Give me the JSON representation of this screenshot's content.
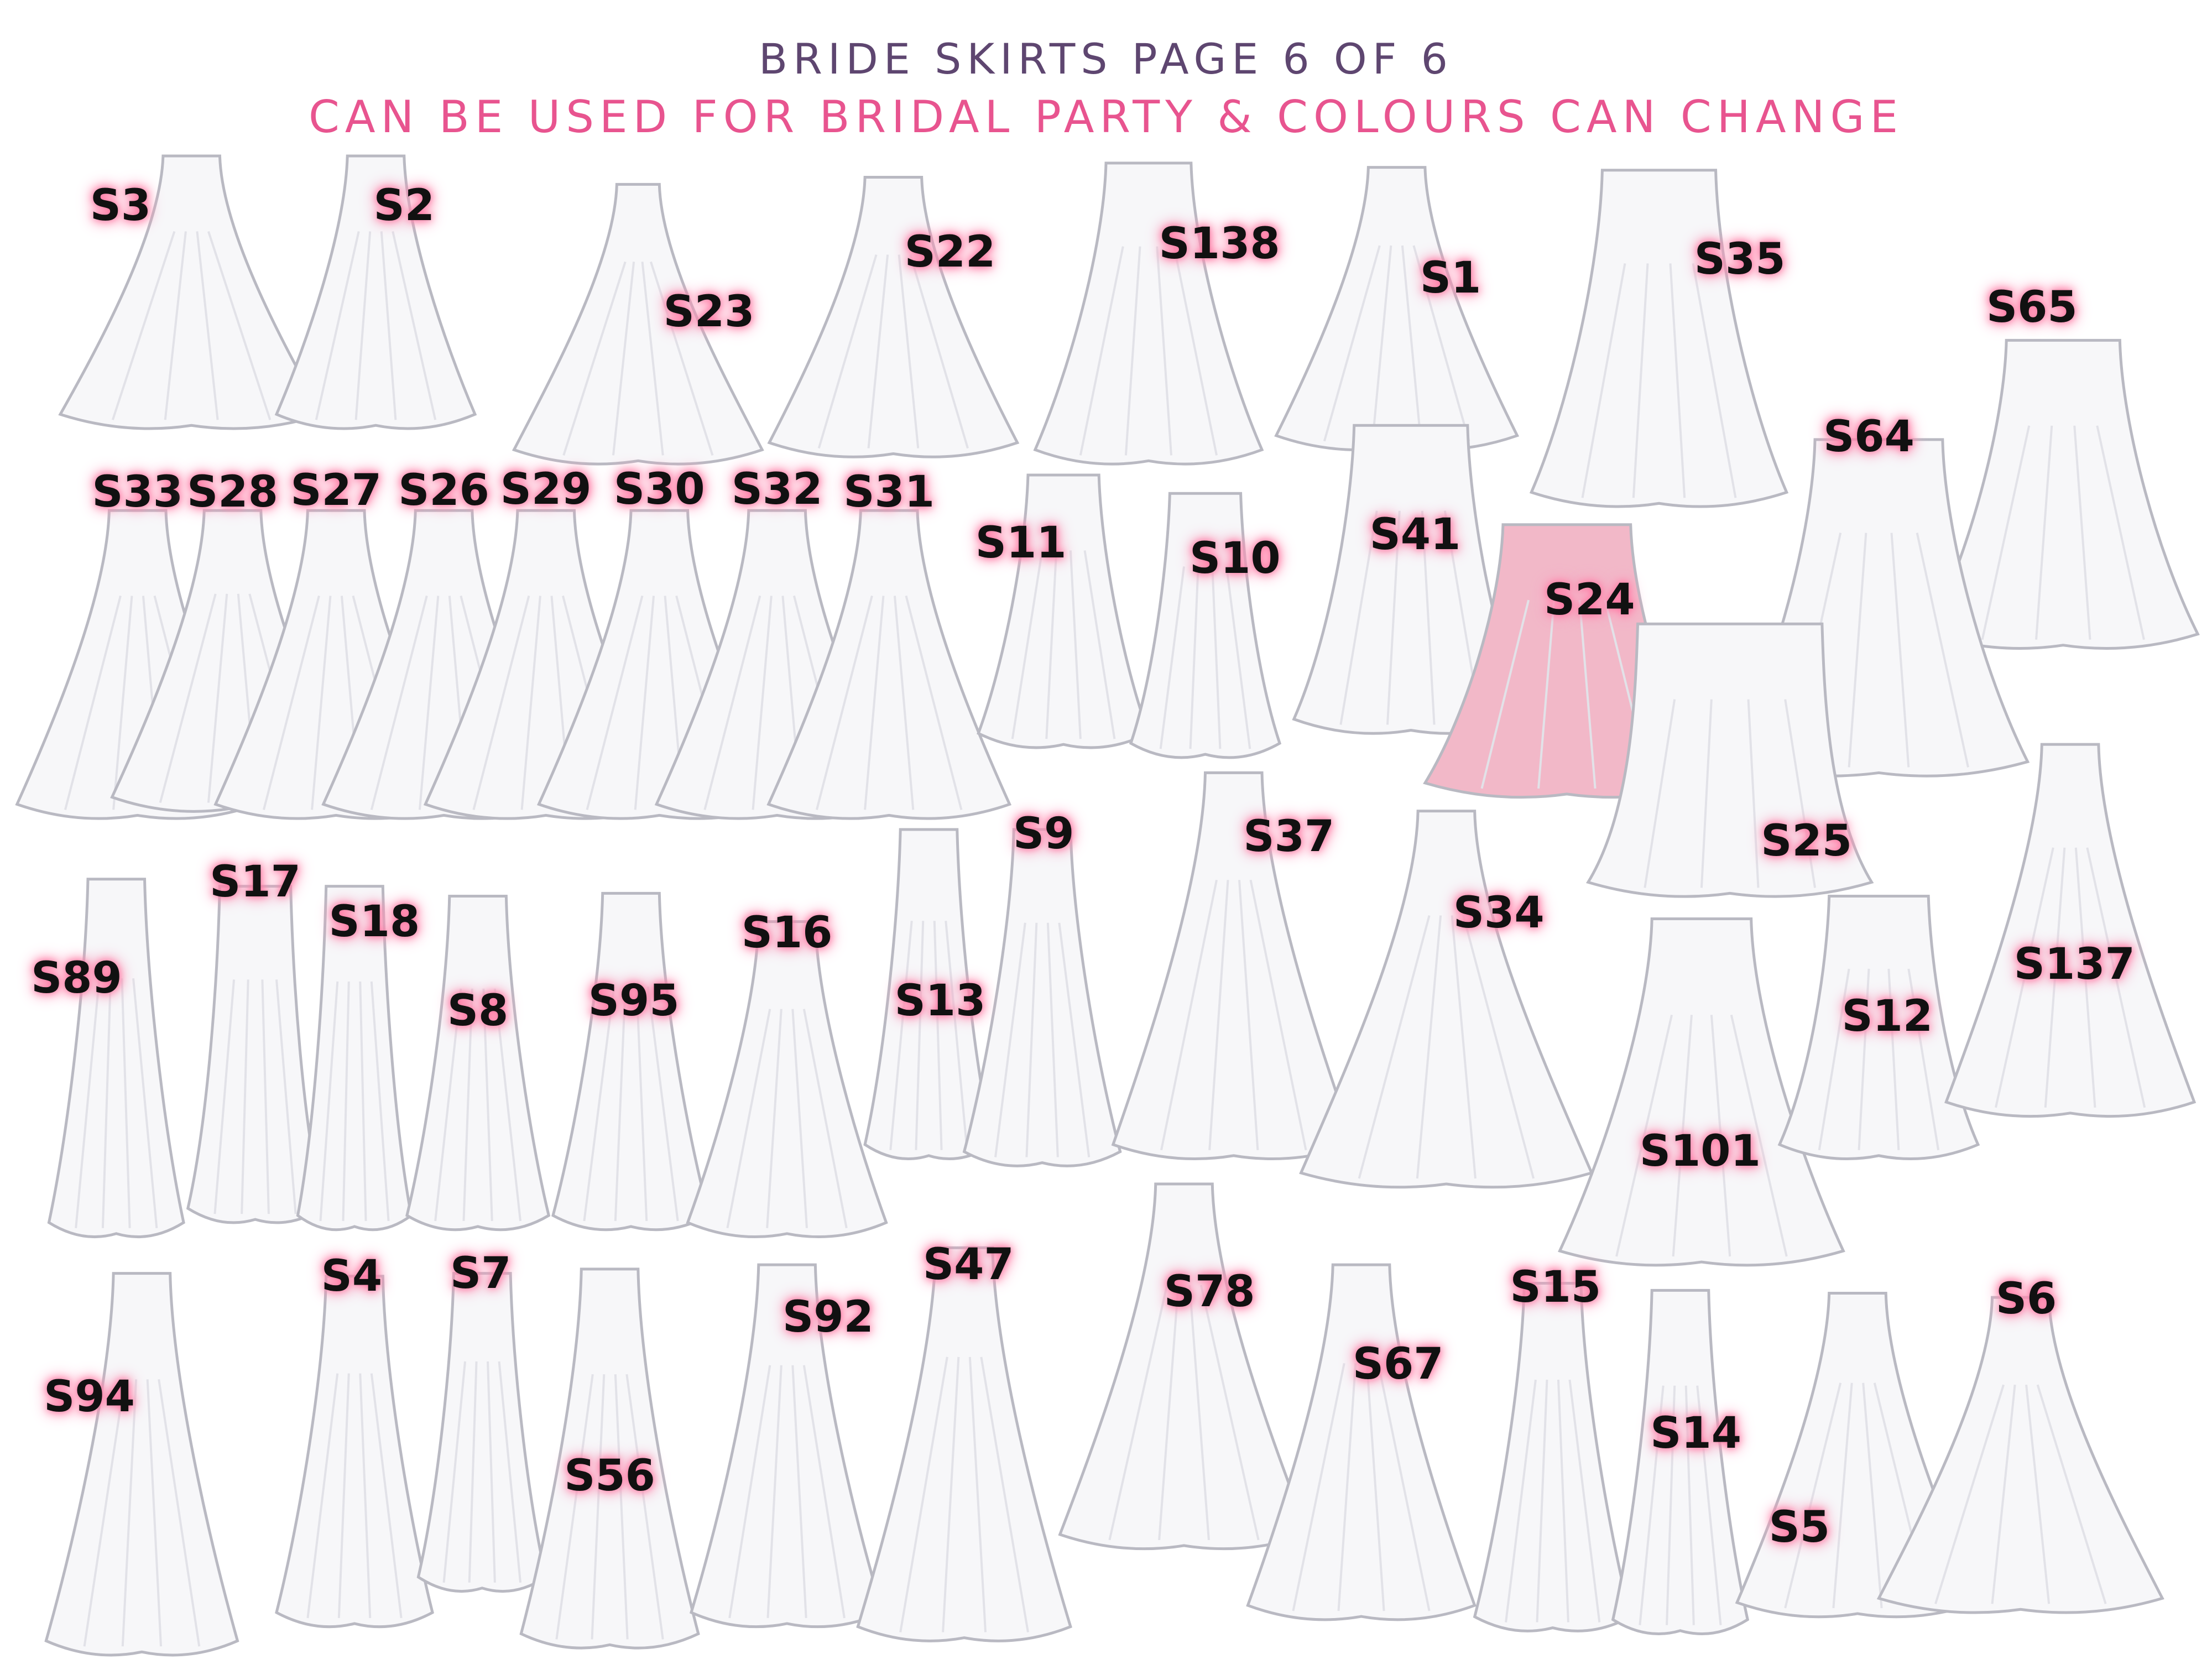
{
  "header": {
    "title": "BRIDE SKIRTS PAGE 6 OF 6",
    "subtitle": "CAN BE USED FOR BRIDAL PARTY & COLOURS CAN CHANGE",
    "title_color": "#5e4670",
    "subtitle_color": "#e8548f"
  },
  "colors": {
    "skirt_fill": "#f7f7f9",
    "skirt_stroke": "#b9b9c2",
    "pink_skirt_fill": "#f2b8c8",
    "label_glow": "#ff6f9c"
  },
  "skirts": [
    {
      "label": "S3"
    },
    {
      "label": "S2"
    },
    {
      "label": "S23"
    },
    {
      "label": "S22"
    },
    {
      "label": "S138"
    },
    {
      "label": "S1"
    },
    {
      "label": "S35"
    },
    {
      "label": "S65"
    },
    {
      "label": "S64"
    },
    {
      "label": "S33"
    },
    {
      "label": "S28"
    },
    {
      "label": "S27"
    },
    {
      "label": "S26"
    },
    {
      "label": "S29"
    },
    {
      "label": "S30"
    },
    {
      "label": "S32"
    },
    {
      "label": "S31"
    },
    {
      "label": "S11"
    },
    {
      "label": "S10"
    },
    {
      "label": "S41"
    },
    {
      "label": "S24",
      "color": "pink"
    },
    {
      "label": "S25"
    },
    {
      "label": "S89"
    },
    {
      "label": "S17"
    },
    {
      "label": "S18"
    },
    {
      "label": "S8"
    },
    {
      "label": "S95"
    },
    {
      "label": "S16"
    },
    {
      "label": "S13"
    },
    {
      "label": "S9"
    },
    {
      "label": "S37"
    },
    {
      "label": "S34"
    },
    {
      "label": "S101"
    },
    {
      "label": "S12"
    },
    {
      "label": "S137"
    },
    {
      "label": "S94"
    },
    {
      "label": "S4"
    },
    {
      "label": "S7"
    },
    {
      "label": "S56"
    },
    {
      "label": "S92"
    },
    {
      "label": "S47"
    },
    {
      "label": "S78"
    },
    {
      "label": "S67"
    },
    {
      "label": "S15"
    },
    {
      "label": "S14"
    },
    {
      "label": "S5"
    },
    {
      "label": "S6"
    }
  ]
}
